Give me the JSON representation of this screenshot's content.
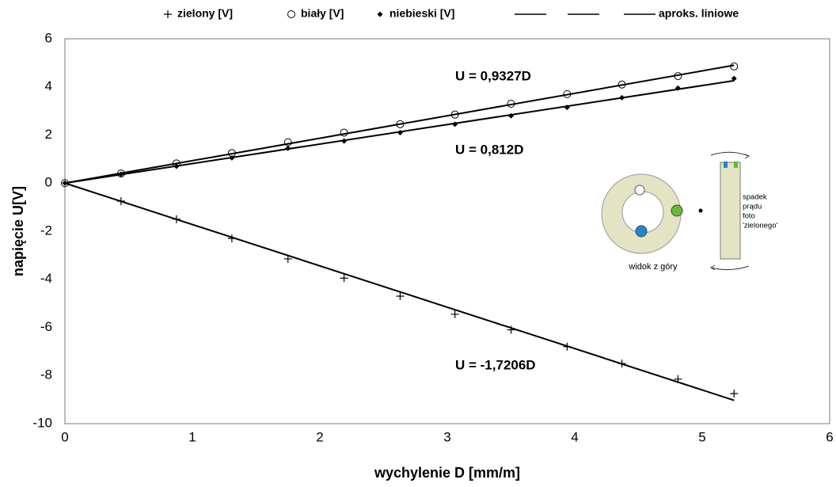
{
  "chart_data": {
    "type": "scatter",
    "xlabel": "wychylenie D [mm/m]",
    "ylabel": "napięcie U[V]",
    "xlim": [
      0,
      6
    ],
    "xticks": [
      0,
      1,
      2,
      3,
      4,
      5,
      6
    ],
    "ylim": [
      -10,
      6
    ],
    "yticks": [
      -10,
      -8,
      -6,
      -4,
      -2,
      0,
      2,
      4,
      6
    ],
    "grid": true,
    "series": [
      {
        "name": "zielony [V]",
        "style": "plus",
        "color": "#000000",
        "x": [
          0,
          0.44,
          0.875,
          1.31,
          1.75,
          2.19,
          2.63,
          3.06,
          3.5,
          3.94,
          4.37,
          4.81,
          5.25
        ],
        "values": [
          0,
          -0.75,
          -1.5,
          -2.3,
          -3.15,
          -3.95,
          -4.7,
          -5.45,
          -6.1,
          -6.8,
          -7.5,
          -8.15,
          -8.75
        ]
      },
      {
        "name": "biały [V]",
        "style": "circle",
        "color": "#000000",
        "x": [
          0,
          0.44,
          0.875,
          1.31,
          1.75,
          2.19,
          2.63,
          3.06,
          3.5,
          3.94,
          4.37,
          4.81,
          5.25
        ],
        "values": [
          0,
          0.4,
          0.82,
          1.25,
          1.7,
          2.1,
          2.45,
          2.85,
          3.3,
          3.7,
          4.1,
          4.45,
          4.85
        ]
      },
      {
        "name": "niebieski [V]",
        "style": "dot",
        "color": "#000000",
        "x": [
          0,
          0.44,
          0.875,
          1.31,
          1.75,
          2.19,
          2.63,
          3.06,
          3.5,
          3.94,
          4.37,
          4.81,
          5.25
        ],
        "values": [
          0,
          0.37,
          0.7,
          1.05,
          1.45,
          1.75,
          2.1,
          2.45,
          2.8,
          3.15,
          3.55,
          3.95,
          4.35
        ]
      },
      {
        "name": null,
        "style": "line",
        "color": "#000000",
        "x": [
          0,
          5.25
        ],
        "values": [
          0,
          -9.03
        ]
      },
      {
        "name": null,
        "style": "line",
        "color": "#000000",
        "x": [
          0,
          5.25
        ],
        "values": [
          0,
          4.9
        ]
      },
      {
        "name": "aproks. liniowe",
        "style": "line",
        "color": "#000000",
        "x": [
          0,
          5.25
        ],
        "values": [
          0,
          4.26
        ]
      }
    ],
    "annotations": [
      "U = 0,9327D",
      "U = 0,812D",
      "U = -1,7206D"
    ],
    "inset": {
      "caption": "widok z góry",
      "note": [
        "spadek",
        "prądu",
        "foto",
        "'zielonego'"
      ]
    }
  }
}
